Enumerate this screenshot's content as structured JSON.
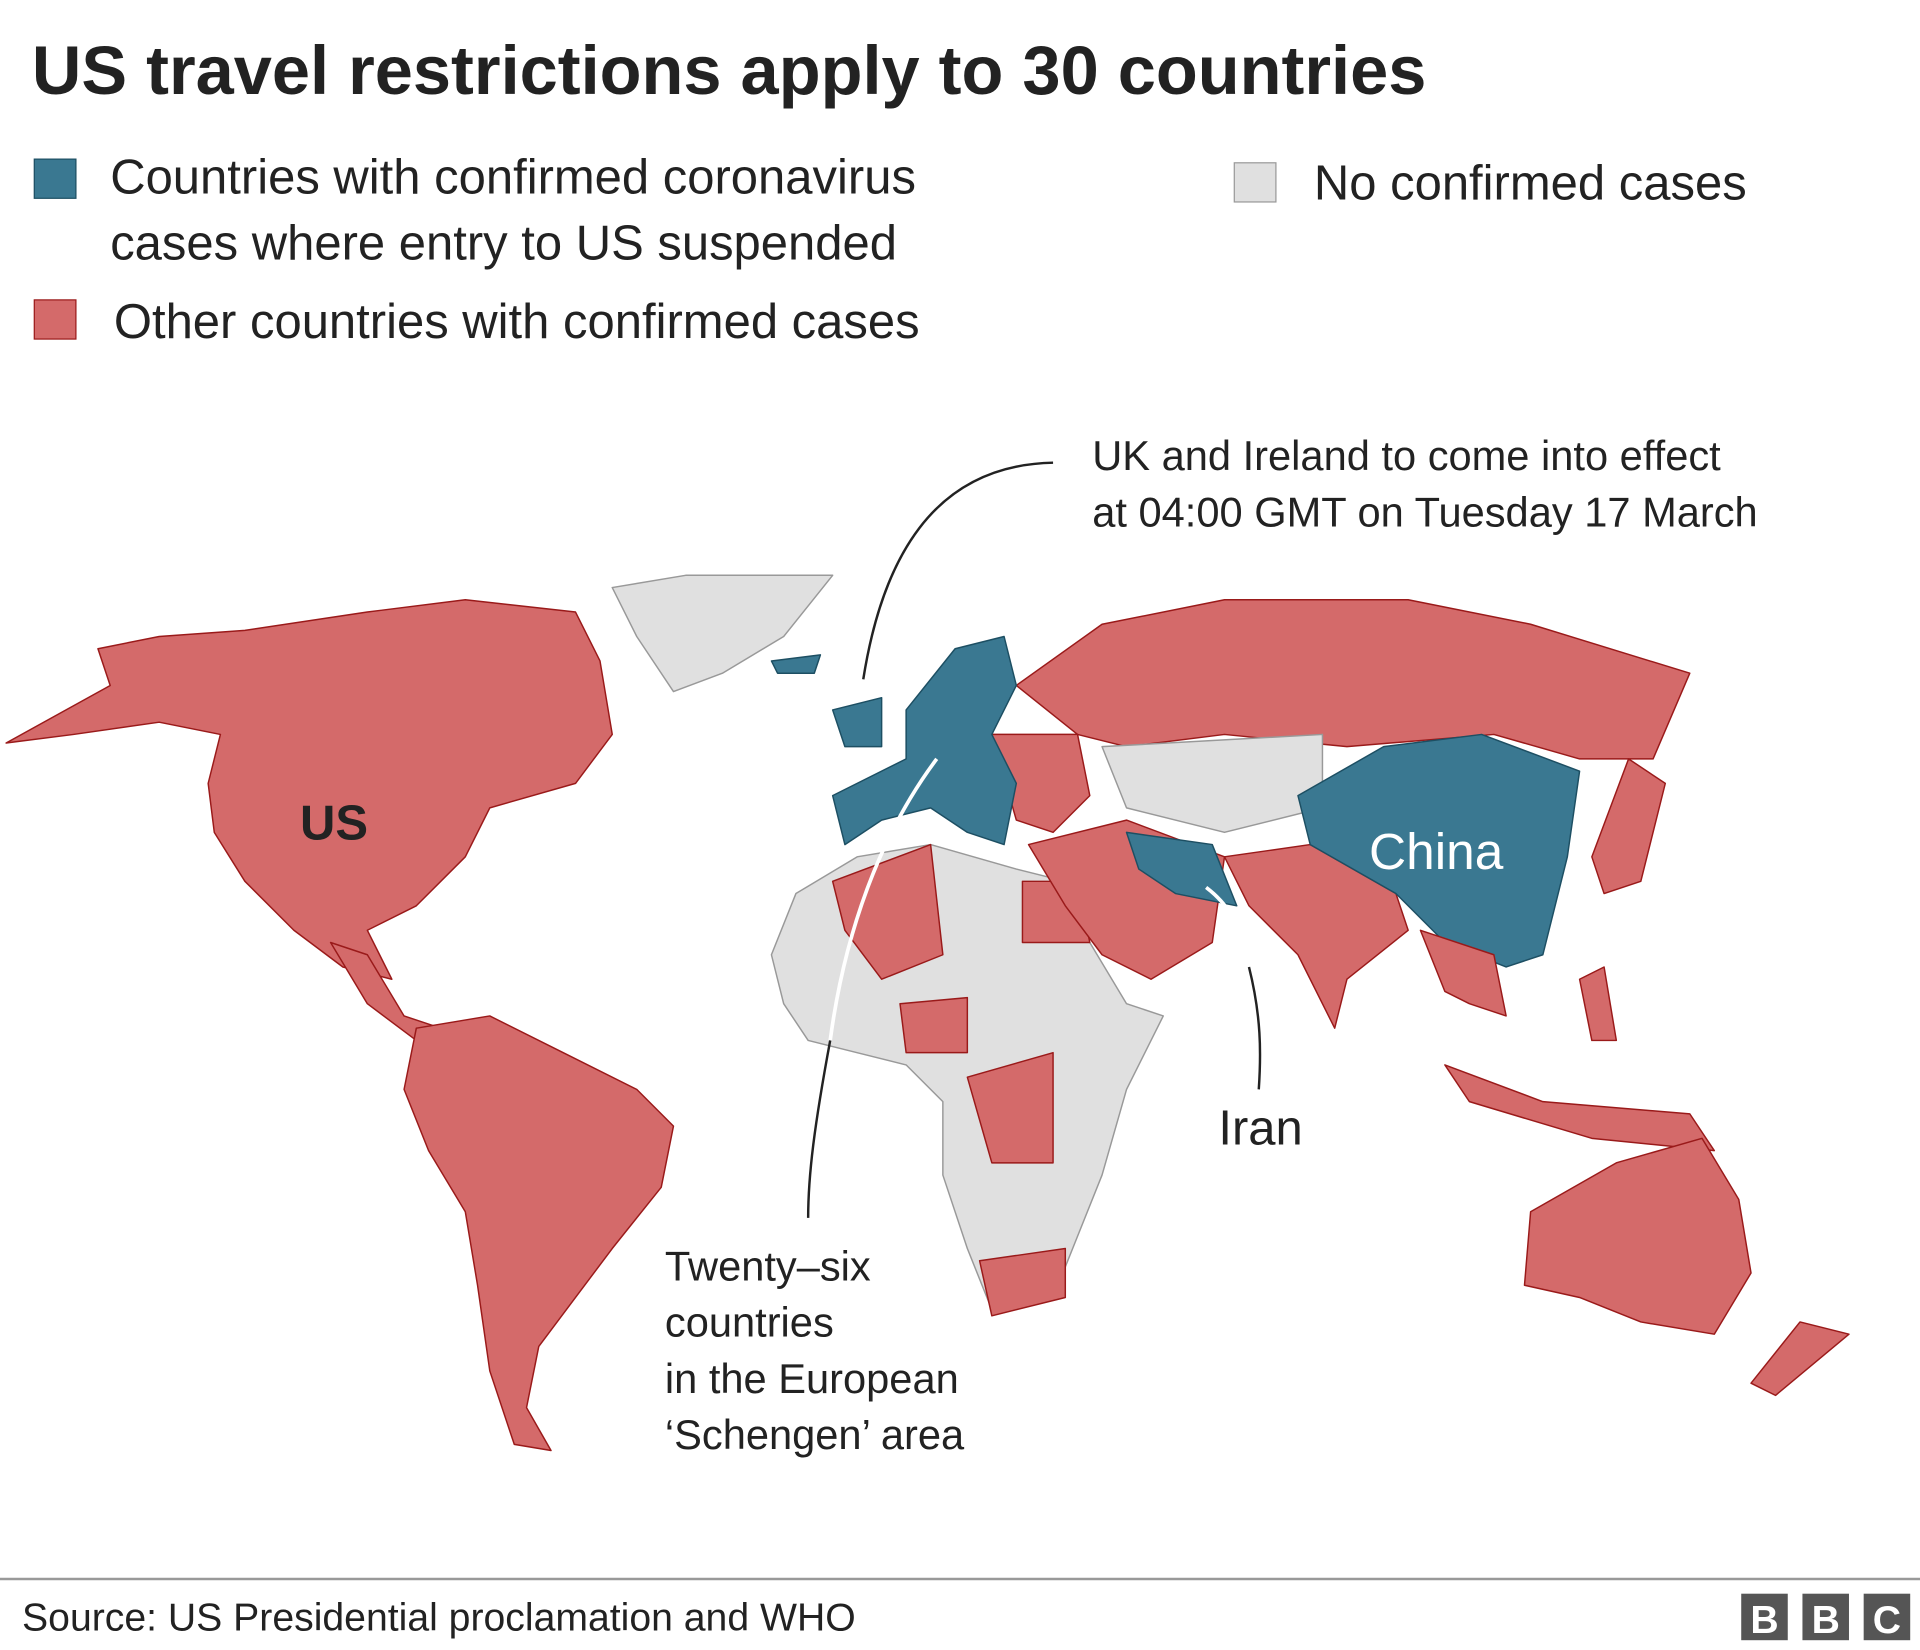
{
  "title": "US travel restrictions apply to 30 countries",
  "legend": [
    {
      "lines": [
        "Countries with confirmed coronavirus",
        "cases where entry to US suspended"
      ],
      "color": "#3a7891"
    },
    {
      "lines": [
        "Other countries with confirmed cases"
      ],
      "color": "#d46a6a"
    },
    {
      "lines": [
        "No confirmed cases"
      ],
      "color": "#e0e0e0"
    }
  ],
  "annotations": {
    "uk": [
      "UK and Ireland to come into effect",
      "at 04:00 GMT on Tuesday 17 March"
    ],
    "schengen": [
      "Twenty–six",
      "countries",
      "in the European",
      "‘Schengen’ area"
    ]
  },
  "labels": {
    "us": "US",
    "china": "China",
    "iran": "Iran"
  },
  "source": "Source: US Presidential proclamation and WHO",
  "logo": [
    "B",
    "B",
    "C"
  ]
}
